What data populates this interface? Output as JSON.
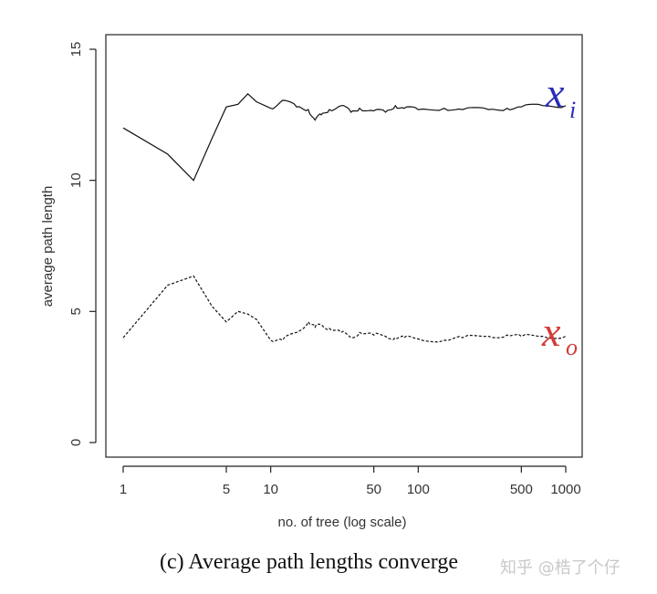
{
  "chart_data": {
    "type": "line",
    "xlabel": "no. of tree (log scale)",
    "ylabel": "average path length",
    "x_scale": "log",
    "xlim": [
      1,
      1000
    ],
    "ylim": [
      0,
      15
    ],
    "x_ticks": [
      1,
      5,
      10,
      50,
      100,
      500,
      1000
    ],
    "x_tick_labels": [
      "1",
      "5",
      "10",
      "50",
      "100",
      "500",
      "1000"
    ],
    "y_ticks": [
      0,
      5,
      10,
      15
    ],
    "y_tick_labels": [
      "0",
      "5",
      "10",
      "15"
    ],
    "grid": false,
    "series": [
      {
        "name": "x_i",
        "label_main": "x",
        "label_sub": "i",
        "line_style": "solid",
        "line_color": "#111111",
        "label_color": "#2b2bb8",
        "x": [
          1,
          2,
          3,
          4,
          5,
          6,
          7,
          8,
          10,
          12,
          15,
          18,
          20,
          22,
          25,
          30,
          35,
          40,
          50,
          60,
          70,
          80,
          100,
          150,
          200,
          300,
          400,
          500,
          700,
          1000
        ],
        "values": [
          12.0,
          11.0,
          10.0,
          11.6,
          12.8,
          12.9,
          13.3,
          13.0,
          12.75,
          13.05,
          12.8,
          12.7,
          12.3,
          12.5,
          12.7,
          12.85,
          12.6,
          12.75,
          12.65,
          12.6,
          12.85,
          12.75,
          12.7,
          12.75,
          12.7,
          12.7,
          12.75,
          12.8,
          12.85,
          12.85
        ]
      },
      {
        "name": "x_o",
        "label_main": "x",
        "label_sub": "o",
        "line_style": "dashed",
        "line_color": "#111111",
        "label_color": "#d63a3a",
        "x": [
          1,
          2,
          3,
          4,
          5,
          6,
          7,
          8,
          10,
          12,
          15,
          18,
          20,
          22,
          25,
          30,
          35,
          40,
          50,
          60,
          70,
          80,
          100,
          150,
          200,
          300,
          400,
          500,
          700,
          1000
        ],
        "values": [
          4.0,
          6.0,
          6.35,
          5.2,
          4.6,
          5.0,
          4.9,
          4.7,
          3.9,
          3.9,
          4.2,
          4.6,
          4.4,
          4.5,
          4.35,
          4.2,
          4.0,
          4.2,
          4.1,
          4.05,
          4.0,
          4.0,
          3.95,
          3.9,
          4.0,
          4.05,
          4.1,
          4.05,
          4.05,
          4.05
        ]
      }
    ]
  },
  "caption": "(c) Average path lengths converge",
  "watermark": "知乎 @梏了个仔"
}
